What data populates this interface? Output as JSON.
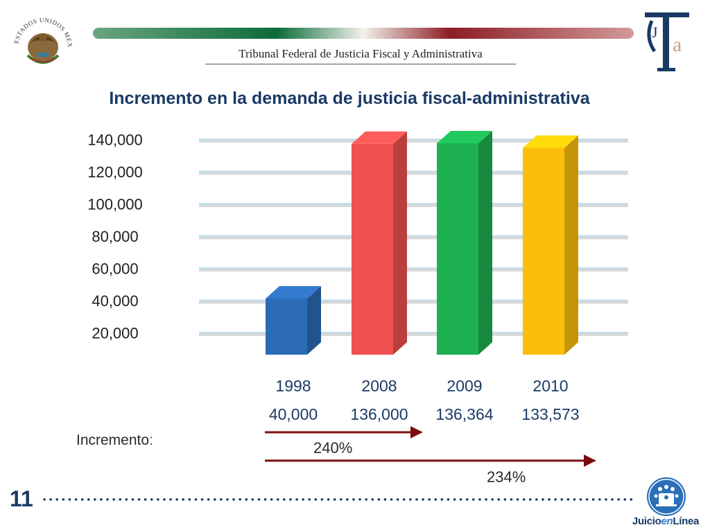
{
  "header": {
    "institution": "Tribunal Federal de Justicia Fiscal y Administrativa",
    "seal_text": "ESTADOS UNIDOS MEXICANOS"
  },
  "icons": {
    "seal": "mexican-coat-of-arms-icon",
    "logo": "tfja-logo-icon",
    "juicio": "juicio-en-linea-icon"
  },
  "footer": {
    "slide_number": "11",
    "brand_part1": "Juicio",
    "brand_part2": "en",
    "brand_part3": "Línea"
  },
  "increment": {
    "label": "Incremento",
    "colon": ":",
    "pct_1998_2008": "240%",
    "pct_1998_2010": "234%"
  },
  "colors": {
    "title": "#1a3a66",
    "bar_1998": "#2c6bb5",
    "bar_2008": "#f05050",
    "bar_2009": "#1cb050",
    "bar_2010": "#fbbf0a",
    "arrow": "#7a0e0e"
  },
  "chart_data": {
    "type": "bar",
    "title": "Incremento en la demanda de justicia fiscal-administrativa",
    "categories": [
      "1998",
      "2008",
      "2009",
      "2010"
    ],
    "value_labels": [
      "40,000",
      "136,000",
      "136,364",
      "133,573"
    ],
    "values": [
      40000,
      136000,
      136364,
      133573
    ],
    "ytick_labels": [
      "140,000",
      "120,000",
      "100,000",
      "80,000",
      "60,000",
      "40,000",
      "20,000"
    ],
    "yticks": [
      140000,
      120000,
      100000,
      80000,
      60000,
      40000,
      20000
    ],
    "ylim": [
      0,
      140000
    ],
    "grid": true,
    "style": "3d"
  }
}
